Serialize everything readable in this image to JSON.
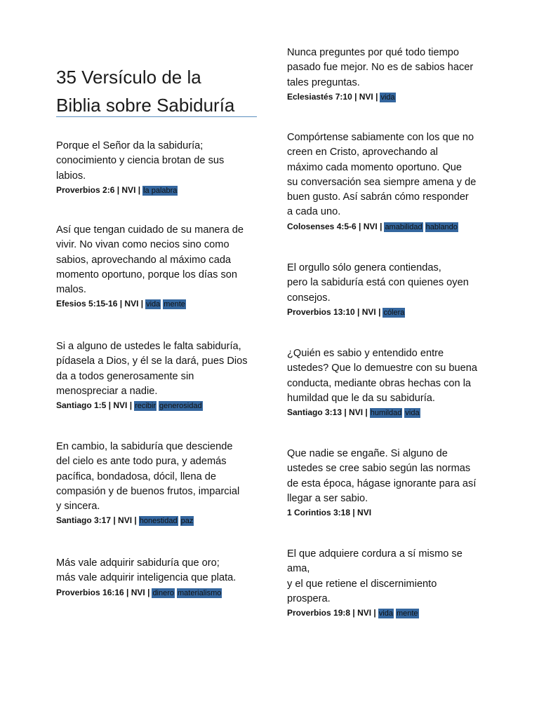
{
  "header": {
    "title_lines": [
      "35 Versículo de la",
      "Biblia sobre Sabiduría"
    ]
  },
  "left": [
    {
      "lines": [
        "Porque el Señor da la sabiduría;",
        "conocimiento y ciencia brotan de sus",
        "labios."
      ],
      "ref": "Proverbios 2:6 | NVI |",
      "tags": [
        "la palabra"
      ]
    },
    {
      "lines": [
        "Así que tengan cuidado de su manera de",
        "vivir. No vivan como necios sino como",
        "sabios, aprovechando al máximo cada",
        "momento oportuno, porque los días son",
        "malos."
      ],
      "ref": "Efesios 5:15-16 | NVI |",
      "tags": [
        "vida",
        "mente"
      ]
    },
    {
      "lines": [
        "Si a alguno de ustedes le falta sabiduría,",
        "pídasela a Dios, y él se la dará, pues Dios",
        "da a todos generosamente sin",
        "menospreciar a nadie."
      ],
      "ref": "Santiago 1:5 | NVI |",
      "tags": [
        "recibir",
        "generosidad"
      ]
    },
    {
      "lines": [
        "En cambio, la sabiduría que desciende",
        "del cielo es ante todo pura, y además",
        "pacífica, bondadosa, dócil, llena de",
        "compasión y de buenos frutos, imparcial",
        "y sincera."
      ],
      "ref": "Santiago 3:17 | NVI |",
      "tags": [
        "honestidad",
        "paz"
      ]
    },
    {
      "lines": [
        "Más vale adquirir sabiduría que oro;",
        "más vale adquirir inteligencia que plata."
      ],
      "ref": "Proverbios 16:16 | NVI |",
      "tags": [
        "dinero",
        "materialismo"
      ]
    }
  ],
  "right": [
    {
      "lines": [
        "Nunca preguntes por qué todo tiempo",
        "pasado fue mejor. No es de sabios hacer",
        "tales preguntas."
      ],
      "ref": "Eclesiastés 7:10 | NVI |",
      "tags": [
        "vida"
      ]
    },
    {
      "lines": [
        "Compórtense sabiamente con los que no",
        "creen en Cristo, aprovechando al",
        "máximo cada momento oportuno. Que",
        "su conversación sea siempre amena y de",
        "buen gusto. Así sabrán cómo responder",
        "a cada uno."
      ],
      "ref": "Colosenses 4:5-6 | NVI |",
      "tags": [
        "amabilidad",
        "hablando"
      ]
    },
    {
      "lines": [
        "El orgullo sólo genera contiendas,",
        "pero la sabiduría está con quienes oyen",
        "consejos."
      ],
      "ref": "Proverbios 13:10 | NVI |",
      "tags": [
        "cólera"
      ]
    },
    {
      "lines": [
        "¿Quién es sabio y entendido entre",
        "ustedes? Que lo demuestre con su buena",
        "conducta, mediante obras hechas con la",
        "humildad que le da su sabiduría."
      ],
      "ref": "Santiago 3:13 | NVI |",
      "tags": [
        "humildad",
        "vida"
      ]
    },
    {
      "lines": [
        "Que nadie se engañe. Si alguno de",
        "ustedes se cree sabio según las normas",
        "de esta época, hágase ignorante para así",
        "llegar a ser sabio."
      ],
      "ref": "1 Corintios 3:18 | NVI",
      "tags": []
    },
    {
      "lines": [
        "El que adquiere cordura a sí mismo se",
        "ama,",
        "y el que retiene el discernimiento",
        "prospera."
      ],
      "ref": "Proverbios 19:8 | NVI |",
      "tags": [
        "vida",
        "mente"
      ]
    }
  ]
}
